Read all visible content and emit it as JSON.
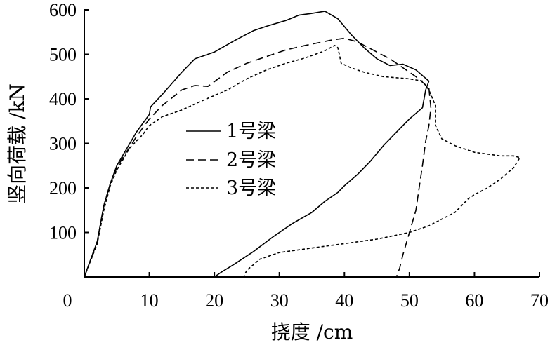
{
  "chart_data": {
    "type": "line",
    "title": "",
    "xlabel": "挠度 /cm",
    "ylabel": "竖向荷载 /kN",
    "xlim": [
      0,
      70
    ],
    "ylim": [
      0,
      600
    ],
    "xticks": [
      "0",
      "10",
      "20",
      "30",
      "40",
      "50",
      "60",
      "70"
    ],
    "yticks": [
      "100",
      "200",
      "300",
      "400",
      "500",
      "600"
    ],
    "grid": false,
    "legend_position": "center-left",
    "series": [
      {
        "name": "1号梁",
        "dash": "solid",
        "points": [
          [
            0,
            0
          ],
          [
            2,
            80
          ],
          [
            3,
            160
          ],
          [
            4,
            210
          ],
          [
            5,
            250
          ],
          [
            6,
            275
          ],
          [
            7,
            300
          ],
          [
            8,
            325
          ],
          [
            9,
            345
          ],
          [
            10,
            365
          ],
          [
            10.2,
            382
          ],
          [
            12,
            410
          ],
          [
            15,
            460
          ],
          [
            17,
            490
          ],
          [
            18,
            495
          ],
          [
            20,
            505
          ],
          [
            23,
            530
          ],
          [
            26,
            553
          ],
          [
            28,
            563
          ],
          [
            31,
            576
          ],
          [
            33,
            588
          ],
          [
            35,
            592
          ],
          [
            37,
            597
          ],
          [
            39,
            580
          ],
          [
            41,
            545
          ],
          [
            43,
            515
          ],
          [
            45,
            490
          ],
          [
            47,
            475
          ],
          [
            49,
            478
          ],
          [
            51,
            465
          ],
          [
            53,
            440
          ],
          [
            52.5,
            420
          ],
          [
            52,
            380
          ],
          [
            50,
            355
          ],
          [
            48,
            325
          ],
          [
            46,
            295
          ],
          [
            44,
            260
          ],
          [
            42,
            230
          ],
          [
            40,
            205
          ],
          [
            39,
            190
          ],
          [
            37,
            170
          ],
          [
            35,
            145
          ],
          [
            32,
            120
          ],
          [
            29,
            90
          ],
          [
            26,
            57
          ],
          [
            23,
            28
          ],
          [
            21,
            10
          ],
          [
            20,
            0
          ]
        ]
      },
      {
        "name": "2号梁",
        "dash": "dashed",
        "points": [
          [
            0,
            0
          ],
          [
            2,
            80
          ],
          [
            3,
            160
          ],
          [
            4,
            210
          ],
          [
            5,
            245
          ],
          [
            6,
            270
          ],
          [
            7,
            292
          ],
          [
            8,
            315
          ],
          [
            9,
            335
          ],
          [
            10,
            355
          ],
          [
            12,
            385
          ],
          [
            15,
            420
          ],
          [
            17,
            430
          ],
          [
            19,
            428
          ],
          [
            22,
            460
          ],
          [
            25,
            480
          ],
          [
            28,
            495
          ],
          [
            31,
            510
          ],
          [
            34,
            520
          ],
          [
            38,
            532
          ],
          [
            40,
            536
          ],
          [
            42,
            528
          ],
          [
            45,
            505
          ],
          [
            47,
            490
          ],
          [
            49,
            470
          ],
          [
            51,
            450
          ],
          [
            53,
            425
          ],
          [
            53.3,
            380
          ],
          [
            53,
            340
          ],
          [
            52.5,
            305
          ],
          [
            52,
            250
          ],
          [
            51.5,
            200
          ],
          [
            51,
            150
          ],
          [
            50,
            100
          ],
          [
            49,
            50
          ],
          [
            48.5,
            20
          ],
          [
            48,
            0
          ]
        ]
      },
      {
        "name": "3号梁",
        "dash": "dotted",
        "points": [
          [
            0,
            0
          ],
          [
            2,
            75
          ],
          [
            3,
            150
          ],
          [
            4,
            205
          ],
          [
            5,
            240
          ],
          [
            6,
            265
          ],
          [
            7,
            290
          ],
          [
            8,
            305
          ],
          [
            9,
            320
          ],
          [
            10,
            340
          ],
          [
            12,
            360
          ],
          [
            15,
            375
          ],
          [
            18,
            395
          ],
          [
            22,
            420
          ],
          [
            25,
            445
          ],
          [
            28,
            465
          ],
          [
            31,
            480
          ],
          [
            34,
            492
          ],
          [
            37,
            508
          ],
          [
            38.5,
            520
          ],
          [
            39,
            515
          ],
          [
            39.5,
            480
          ],
          [
            41,
            470
          ],
          [
            43,
            460
          ],
          [
            46,
            450
          ],
          [
            50,
            445
          ],
          [
            52,
            440
          ],
          [
            53,
            420
          ],
          [
            54,
            385
          ],
          [
            54,
            340
          ],
          [
            55,
            310
          ],
          [
            57,
            295
          ],
          [
            60,
            280
          ],
          [
            64,
            272
          ],
          [
            66,
            272
          ],
          [
            67,
            268
          ],
          [
            66,
            245
          ],
          [
            64,
            220
          ],
          [
            62,
            200
          ],
          [
            60,
            185
          ],
          [
            59,
            175
          ],
          [
            57,
            145
          ],
          [
            55,
            130
          ],
          [
            53,
            115
          ],
          [
            50,
            100
          ],
          [
            45,
            85
          ],
          [
            40,
            75
          ],
          [
            35,
            65
          ],
          [
            30,
            55
          ],
          [
            27,
            40
          ],
          [
            25,
            15
          ],
          [
            24.5,
            0
          ]
        ]
      }
    ]
  }
}
